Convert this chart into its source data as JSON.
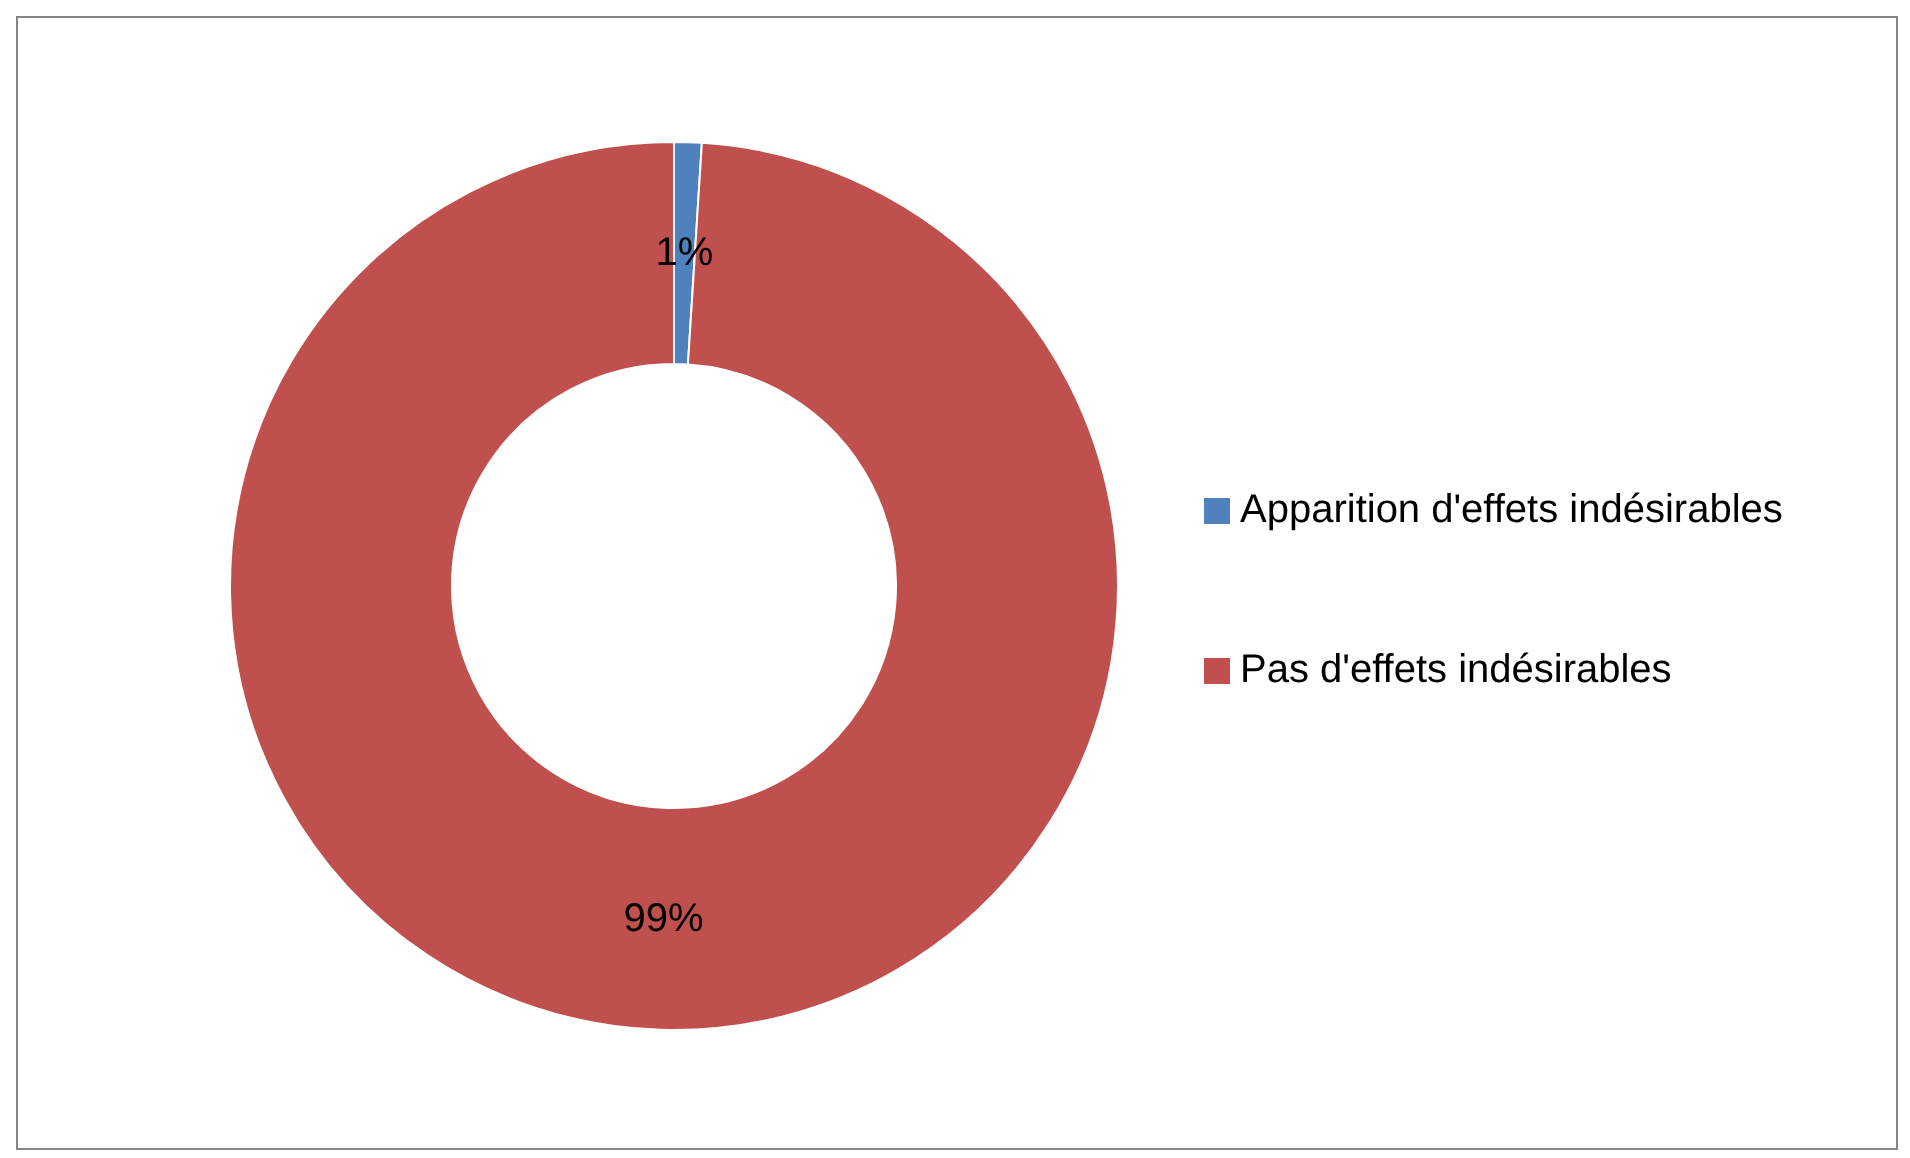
{
  "chart_data": {
    "type": "donut",
    "categories": [
      "Apparition d'effets indésirables",
      "Pas d'effets indésirables"
    ],
    "values": [
      1,
      99
    ],
    "colors": [
      "#4f81bd",
      "#c0504d"
    ],
    "value_labels": [
      "1%",
      "99%"
    ],
    "legend": "right"
  }
}
